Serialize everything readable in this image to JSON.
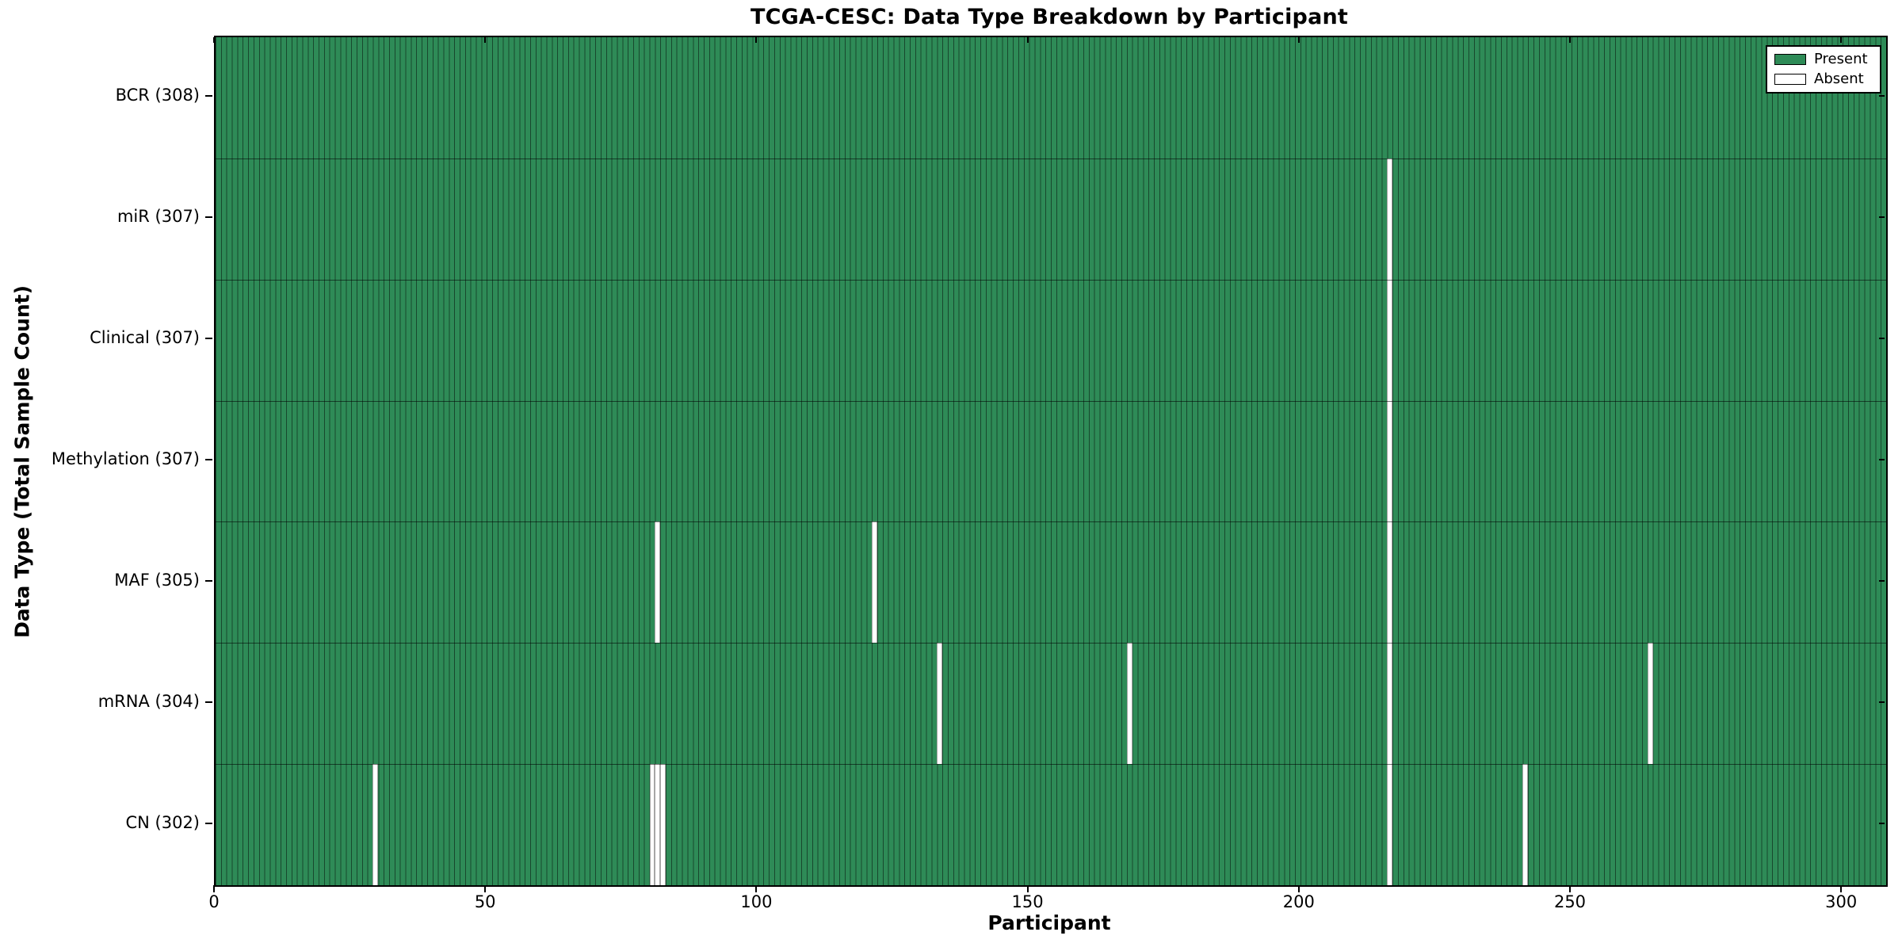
{
  "chart_data": {
    "type": "heatmap",
    "title": "TCGA-CESC: Data Type Breakdown by Participant",
    "xlabel": "Participant",
    "ylabel": "Data Type (Total Sample Count)",
    "n_participants": 308,
    "x_ticks": [
      0,
      50,
      100,
      150,
      200,
      250,
      300
    ],
    "xlim": [
      0,
      308
    ],
    "grid": false,
    "legend_position": "upper right",
    "colors": {
      "present": "#2e8b57",
      "absent": "#ffffff",
      "edge": "#000000"
    },
    "legend": [
      {
        "label": "Present",
        "color": "#2e8b57"
      },
      {
        "label": "Absent",
        "color": "#ffffff"
      }
    ],
    "rows": [
      {
        "label": "BCR (308)",
        "data_type": "BCR",
        "total": 308,
        "absent_participants": []
      },
      {
        "label": "miR (307)",
        "data_type": "miR",
        "total": 307,
        "absent_participants": [
          216
        ]
      },
      {
        "label": "Clinical (307)",
        "data_type": "Clinical",
        "total": 307,
        "absent_participants": [
          216
        ]
      },
      {
        "label": "Methylation (307)",
        "data_type": "Methylation",
        "total": 307,
        "absent_participants": [
          216
        ]
      },
      {
        "label": "MAF (305)",
        "data_type": "MAF",
        "total": 305,
        "absent_participants": [
          81,
          121,
          216
        ]
      },
      {
        "label": "mRNA (304)",
        "data_type": "mRNA",
        "total": 304,
        "absent_participants": [
          133,
          168,
          216,
          264
        ]
      },
      {
        "label": "CN (302)",
        "data_type": "CN",
        "total": 302,
        "absent_participants": [
          29,
          80,
          81,
          82,
          216,
          241
        ]
      }
    ]
  }
}
